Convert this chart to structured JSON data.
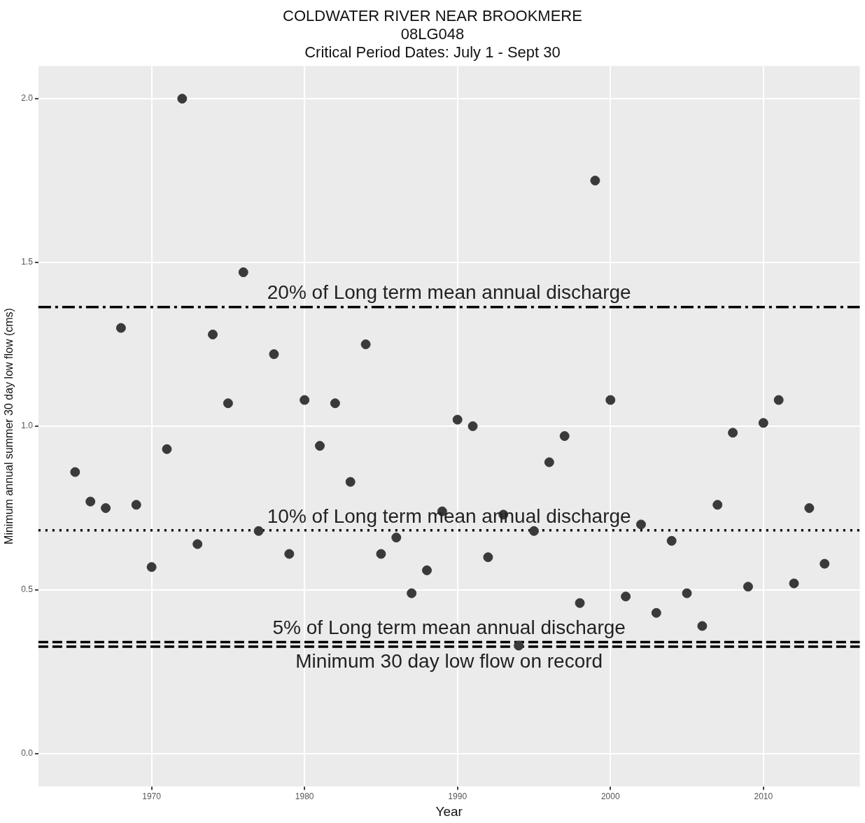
{
  "chart_data": {
    "type": "scatter",
    "title": "COLDWATER RIVER NEAR BROOKMERE",
    "subtitle": "08LG048\nCritical Period Dates: July 1 - Sept 30",
    "xlabel": "Year",
    "ylabel": "Minimum annual summer 30 day low flow (cms)",
    "x": [
      1965,
      1966,
      1967,
      1968,
      1969,
      1970,
      1971,
      1972,
      1973,
      1974,
      1975,
      1976,
      1977,
      1978,
      1979,
      1980,
      1981,
      1982,
      1983,
      1984,
      1985,
      1986,
      1987,
      1988,
      1989,
      1990,
      1991,
      1992,
      1993,
      1994,
      1995,
      1996,
      1997,
      1998,
      1999,
      2000,
      2001,
      2002,
      2003,
      2004,
      2005,
      2006,
      2007,
      2008,
      2009,
      2010,
      2011,
      2012,
      2013,
      2014
    ],
    "series": [
      {
        "color": "#3a3a3a",
        "values": [
          0.86,
          0.77,
          0.75,
          1.3,
          0.76,
          0.57,
          0.93,
          2.0,
          0.64,
          1.28,
          1.07,
          1.47,
          0.68,
          1.22,
          0.61,
          1.08,
          0.94,
          1.07,
          0.83,
          1.25,
          0.61,
          0.66,
          0.49,
          0.56,
          0.74,
          1.02,
          1.0,
          0.6,
          0.73,
          0.33,
          0.68,
          0.89,
          0.97,
          0.46,
          1.75,
          1.08,
          0.48,
          0.7,
          0.43,
          0.65,
          0.49,
          0.39,
          0.76,
          0.98,
          0.51,
          1.01,
          1.08,
          0.52,
          0.75,
          0.58
        ]
      }
    ],
    "xlim": [
      1962.6,
      2016.3
    ],
    "ylim": [
      -0.1,
      2.1
    ],
    "xticks": [
      1970,
      1980,
      1990,
      2000,
      2010
    ],
    "yticks": [
      {
        "value": 0,
        "label": "0.0"
      },
      {
        "value": 0.5,
        "label": "0.5"
      },
      {
        "value": 1,
        "label": "1.0"
      },
      {
        "value": 1.5,
        "label": "1.5"
      },
      {
        "value": 2,
        "label": "2.0"
      }
    ],
    "grid": true,
    "legend": false,
    "marker": "circle",
    "ref_lines": [
      {
        "axis": "y",
        "value": 1.364,
        "label": "20% of Long term mean annual discharge",
        "color": "#000000",
        "line_style": "dashdot"
      },
      {
        "axis": "y",
        "value": 0.682,
        "label": "10% of Long term mean annual discharge",
        "color": "#000000",
        "line_style": "dotted"
      },
      {
        "axis": "y",
        "value": 0.341,
        "label": "5% of Long term mean annual discharge",
        "color": "#000000",
        "line_style": "dashed"
      },
      {
        "axis": "y",
        "value": 0.327,
        "label": "Minimum 30 day low flow on record",
        "color": "#000000",
        "line_style": "dashed"
      }
    ]
  }
}
